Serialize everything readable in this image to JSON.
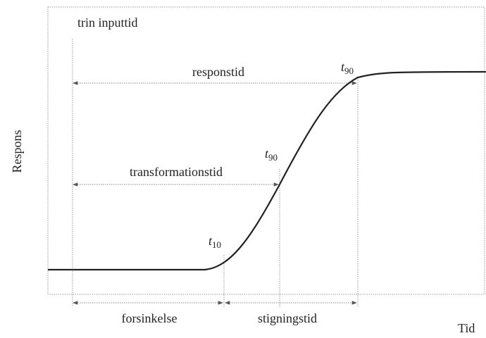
{
  "axes": {
    "y_label": "Respons",
    "x_label": "Tid"
  },
  "labels": {
    "input": "trin inputtid",
    "response": "responstid",
    "transformation": "transformationstid",
    "delay": "forsinkelse",
    "rise": "stigningstid"
  },
  "markers": [
    {
      "symbol": "t",
      "sub": "90"
    },
    {
      "symbol": "t",
      "sub": "90"
    },
    {
      "symbol": "t",
      "sub": "10"
    }
  ]
}
